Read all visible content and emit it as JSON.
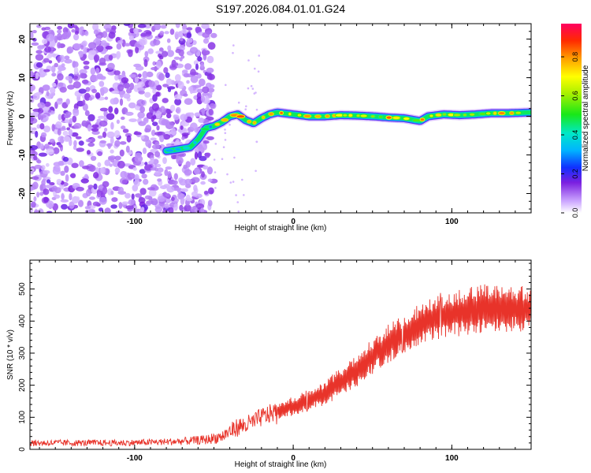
{
  "title": "S197.2026.084.01.01.G24",
  "chart_data": [
    {
      "type": "heatmap",
      "xlabel": "Height of straight line (km)",
      "ylabel": "Frequency (Hz)",
      "xlim": [
        -166,
        150
      ],
      "ylim": [
        -25,
        24
      ],
      "xticks": [
        -100,
        0,
        100
      ],
      "yticks": [
        -20,
        -10,
        0,
        10,
        20
      ],
      "colorbar": {
        "label": "Normalized spectral amplitude",
        "ticks": [
          0.0,
          0.2,
          0.4,
          0.6,
          0.8
        ],
        "range": [
          0,
          0.97
        ]
      },
      "noise_region": {
        "x": [
          -166,
          -50
        ],
        "y": [
          -25,
          24
        ]
      },
      "signal_track": [
        {
          "x": -80,
          "y": -9.0
        },
        {
          "x": -72,
          "y": -8.5
        },
        {
          "x": -65,
          "y": -8.0
        },
        {
          "x": -60,
          "y": -6.0
        },
        {
          "x": -55,
          "y": -3.0
        },
        {
          "x": -50,
          "y": -2.5
        },
        {
          "x": -45,
          "y": -1.5
        },
        {
          "x": -40,
          "y": 0.0
        },
        {
          "x": -35,
          "y": 0.5
        },
        {
          "x": -30,
          "y": -1.0
        },
        {
          "x": -25,
          "y": -1.8
        },
        {
          "x": -20,
          "y": -0.5
        },
        {
          "x": -15,
          "y": 0.5
        },
        {
          "x": -10,
          "y": 1.0
        },
        {
          "x": 0,
          "y": 0.5
        },
        {
          "x": 10,
          "y": 0.0
        },
        {
          "x": 20,
          "y": 0.0
        },
        {
          "x": 30,
          "y": 0.3
        },
        {
          "x": 40,
          "y": 0.2
        },
        {
          "x": 50,
          "y": 0.0
        },
        {
          "x": 60,
          "y": -0.3
        },
        {
          "x": 70,
          "y": -0.5
        },
        {
          "x": 80,
          "y": -1.2
        },
        {
          "x": 85,
          "y": 0.0
        },
        {
          "x": 95,
          "y": 0.5
        },
        {
          "x": 105,
          "y": 0.3
        },
        {
          "x": 115,
          "y": 0.5
        },
        {
          "x": 125,
          "y": 0.8
        },
        {
          "x": 135,
          "y": 0.8
        },
        {
          "x": 150,
          "y": 1.0
        }
      ]
    },
    {
      "type": "line",
      "xlabel": "Height of straight line (km)",
      "ylabel": "SNR (10 * v/v)",
      "xlim": [
        -166,
        150
      ],
      "ylim": [
        0,
        590
      ],
      "xticks": [
        -100,
        0,
        100
      ],
      "yticks": [
        0,
        100,
        200,
        300,
        400,
        500
      ],
      "series": [
        {
          "name": "SNR",
          "color": "#e8332a",
          "x": [
            -166,
            -150,
            -130,
            -110,
            -90,
            -70,
            -55,
            -45,
            -40,
            -35,
            -30,
            -25,
            -20,
            -15,
            -10,
            0,
            10,
            20,
            30,
            40,
            50,
            60,
            70,
            80,
            90,
            100,
            110,
            120,
            130,
            140,
            150
          ],
          "mean": [
            20,
            20,
            20,
            20,
            22,
            25,
            30,
            40,
            55,
            70,
            75,
            85,
            100,
            110,
            120,
            135,
            155,
            175,
            210,
            245,
            290,
            330,
            360,
            390,
            410,
            420,
            430,
            440,
            440,
            440,
            435
          ],
          "spread": [
            10,
            10,
            10,
            10,
            10,
            12,
            15,
            20,
            25,
            30,
            30,
            30,
            30,
            30,
            30,
            30,
            35,
            40,
            45,
            50,
            55,
            60,
            60,
            65,
            70,
            70,
            75,
            75,
            75,
            75,
            70
          ]
        }
      ]
    }
  ]
}
